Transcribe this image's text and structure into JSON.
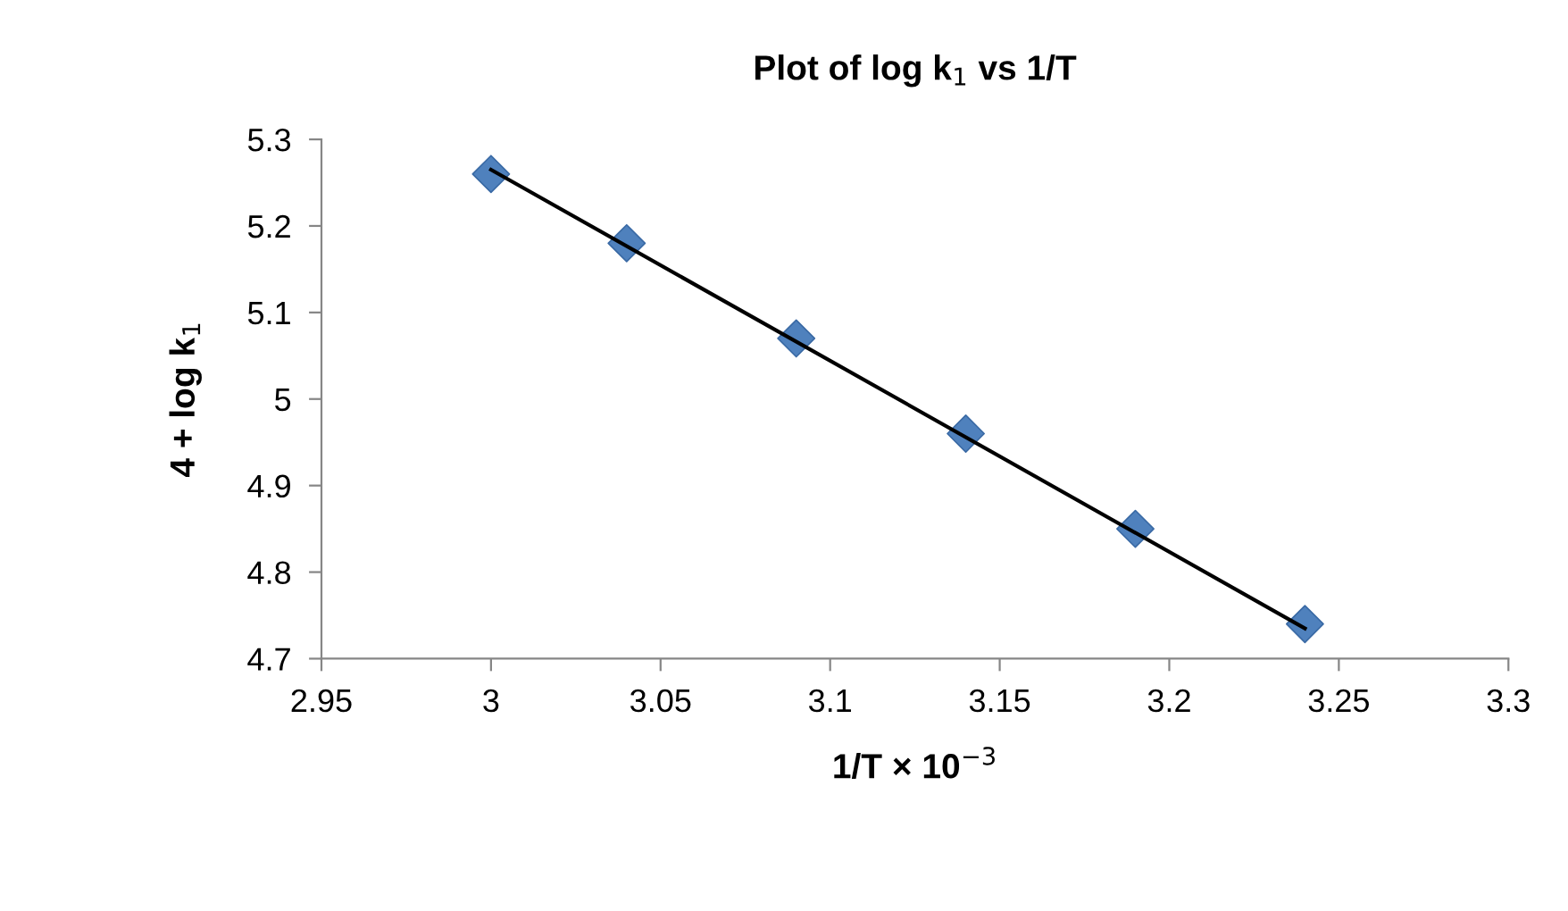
{
  "chart_data": {
    "type": "scatter",
    "title": "Plot of log k$_{1}$ vs 1/T",
    "xlabel": "1/T × 10$^{−3}$",
    "ylabel": "4 + log k$_{1}$",
    "series": [
      {
        "color": "#4f81bd",
        "x": [
          3.0,
          3.04,
          3.09,
          3.14,
          3.19,
          3.24
        ],
        "values": [
          5.26,
          5.18,
          5.07,
          4.96,
          4.85,
          4.74
        ],
        "marker": "diamond"
      },
      {
        "type": "line",
        "color": "#000000",
        "x": [
          3.0,
          3.24
        ],
        "values": [
          5.265,
          4.735
        ],
        "marker": "none",
        "line_style": "solid"
      }
    ],
    "xlim": [
      2.95,
      3.3
    ],
    "xticks": [
      2.95,
      3,
      3.05,
      3.1,
      3.15,
      3.2,
      3.25,
      3.3
    ],
    "ylim": [
      4.7,
      5.3
    ],
    "yticks": [
      4.7,
      4.8,
      4.9,
      5,
      5.1,
      5.2,
      5.3
    ],
    "grid": false,
    "legend": false
  }
}
